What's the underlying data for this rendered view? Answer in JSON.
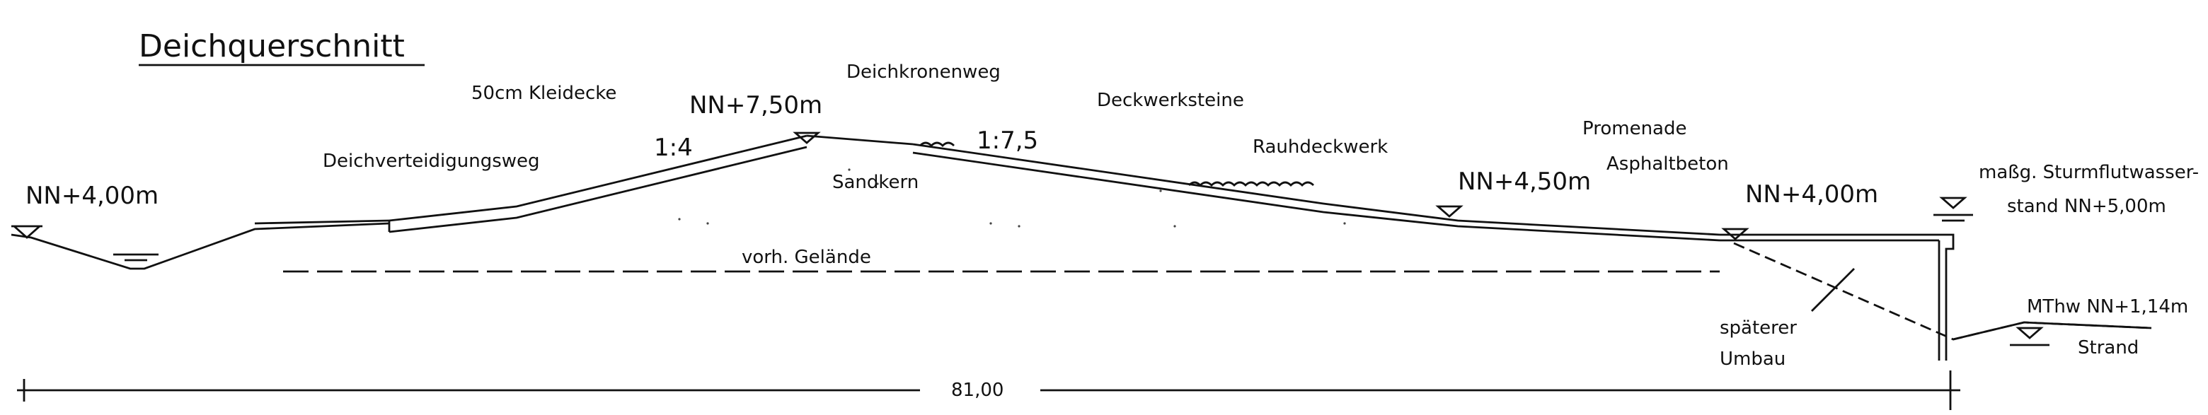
{
  "title": "Deichquerschnitt",
  "labels": {
    "kleidecke": "50cm Kleidecke",
    "deichkronenweg": "Deichkronenweg",
    "crest_level": "NN+7,50m",
    "deckwerksteine": "Deckwerksteine",
    "deichverteidigungsweg": "Deichverteidigungsweg",
    "slope_inner": "1:4",
    "slope_outer": "1:7,5",
    "rauhdeckwerk": "Rauhdeckwerk",
    "promenade": "Promenade",
    "sandkern": "Sandkern",
    "left_level": "NN+4,00m",
    "vorh_gelaende": "vorh. Gelände",
    "berm_level": "NN+4,50m",
    "asphaltbeton": "Asphaltbeton",
    "right_level": "NN+4,00m",
    "storm_line1": "maßg. Sturmflutwasser-",
    "storm_line2": "stand NN+5,00m",
    "mthw": "MThw NN+1,14m",
    "strand": "Strand",
    "later1": "späterer",
    "later2": "Umbau",
    "dimension": "81,00"
  }
}
